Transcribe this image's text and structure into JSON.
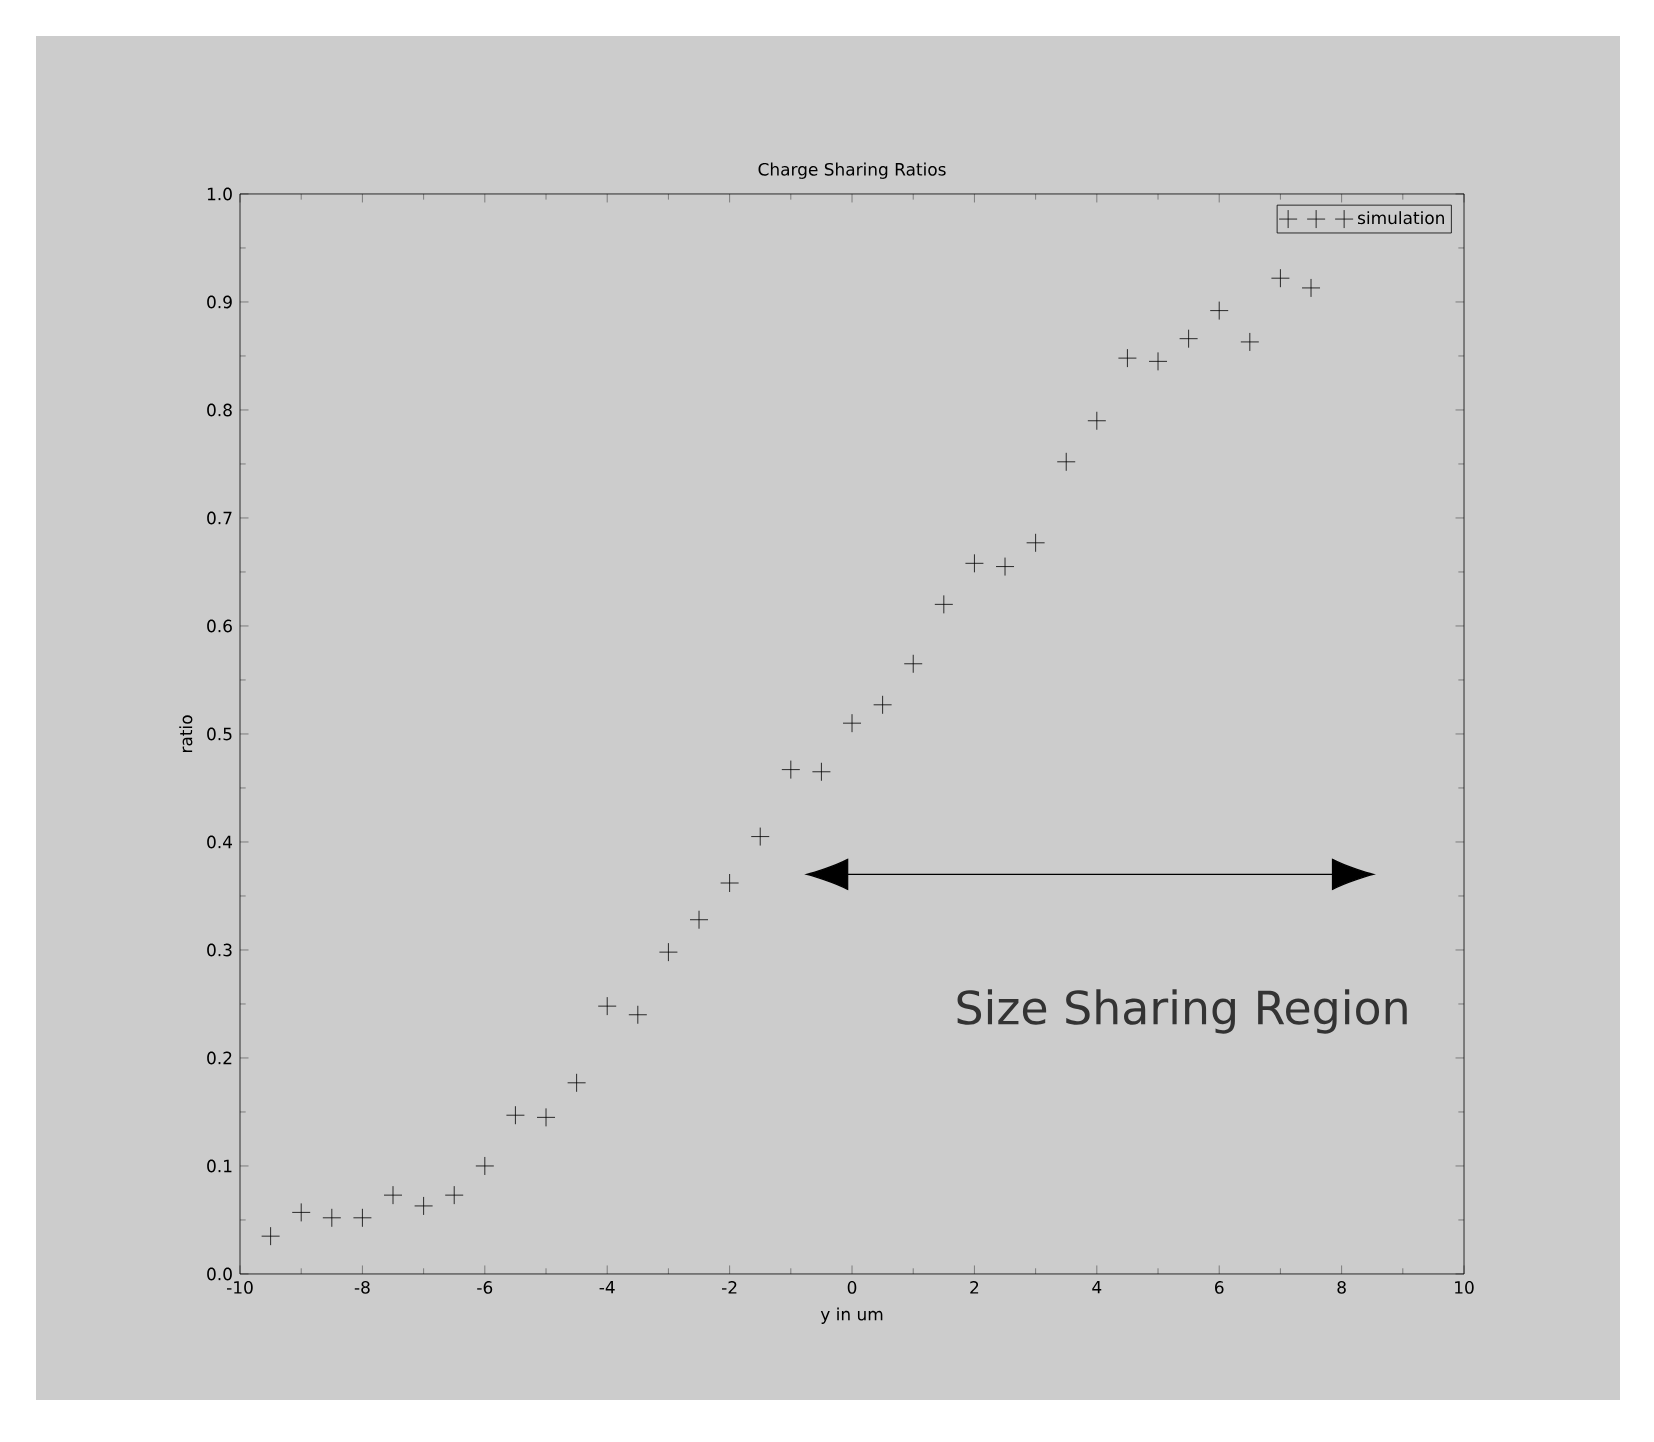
{
  "chart_data": {
    "type": "scatter",
    "title": "Charge Sharing Ratios",
    "xlabel": "y in um",
    "ylabel": "ratio",
    "x": [
      -9.5,
      -9,
      -8.5,
      -8,
      -7.5,
      -7,
      -6.5,
      -6,
      -5.5,
      -5,
      -4.5,
      -4,
      -3.5,
      -3,
      -2.5,
      -2,
      -1.5,
      -1,
      -0.5,
      0,
      0.5,
      1,
      1.5,
      2,
      2.5,
      3,
      3.5,
      4,
      4.5,
      5,
      5.5,
      6,
      6.5,
      7,
      7.5
    ],
    "series": [
      {
        "name": "simulation",
        "color": "#000000",
        "values": [
          0.035,
          0.057,
          0.052,
          0.052,
          0.073,
          0.063,
          0.073,
          0.1,
          0.147,
          0.145,
          0.177,
          0.248,
          0.24,
          0.298,
          0.328,
          0.362,
          0.405,
          0.467,
          0.465,
          0.51,
          0.527,
          0.565,
          0.62,
          0.658,
          0.655,
          0.677,
          0.752,
          0.79,
          0.848,
          0.845,
          0.866,
          0.892,
          0.863,
          0.922,
          0.913
        ]
      }
    ],
    "xlim": [
      -10,
      10
    ],
    "ylim": [
      0,
      1
    ],
    "xticks": [
      -10,
      -8,
      -6,
      -4,
      -2,
      0,
      2,
      4,
      6,
      8,
      10
    ],
    "yticks": [
      {
        "value": 0,
        "label": "0.0"
      },
      {
        "value": 0.1,
        "label": "0.1"
      },
      {
        "value": 0.2,
        "label": "0.2"
      },
      {
        "value": 0.3,
        "label": "0.3"
      },
      {
        "value": 0.4,
        "label": "0.4"
      },
      {
        "value": 0.5,
        "label": "0.5"
      },
      {
        "value": 0.6,
        "label": "0.6"
      },
      {
        "value": 0.7,
        "label": "0.7"
      },
      {
        "value": 0.8,
        "label": "0.8"
      },
      {
        "value": 0.9,
        "label": "0.9"
      },
      {
        "value": 1,
        "label": "1.0"
      }
    ],
    "grid": false,
    "legend": "top right",
    "marker": "cross",
    "annotations": [
      "Size Sharing Region"
    ]
  }
}
